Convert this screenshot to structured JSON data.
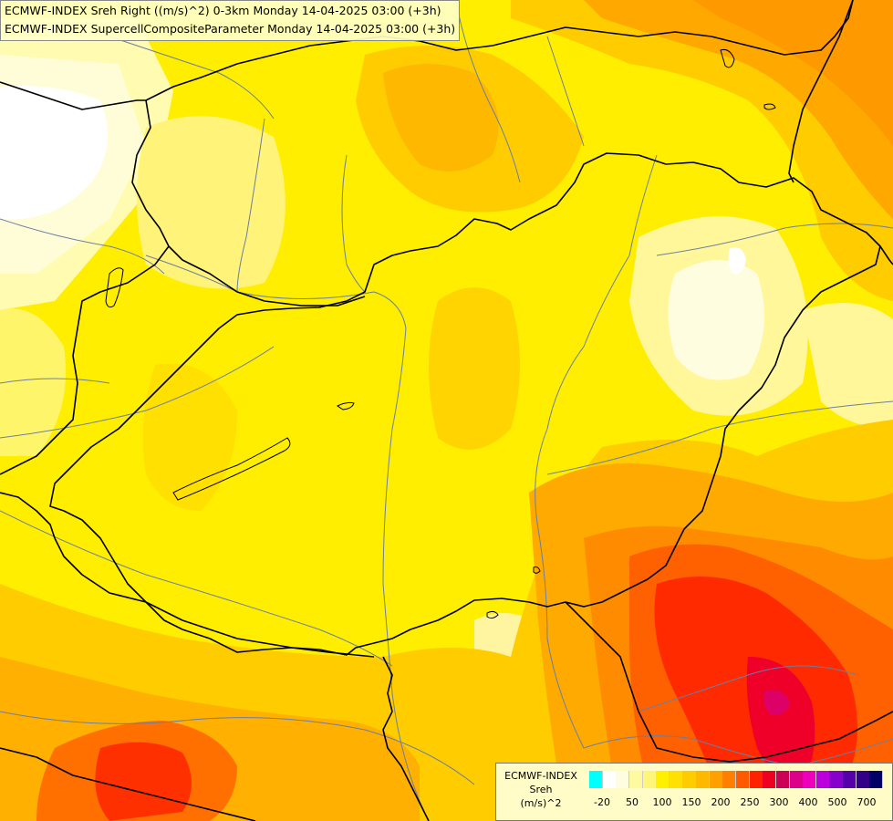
{
  "header": {
    "line1": "ECMWF-INDEX Sreh Right ((m/s)^2) 0-3km Monday 14-04-2025 03:00 (+3h)",
    "line2": "ECMWF-INDEX SupercellCompositeParameter Monday 14-04-2025 03:00 (+3h)"
  },
  "legend": {
    "title": "ECMWF-INDEX",
    "variable": "Sreh",
    "unit": "(m/s)^2",
    "colors": [
      "#00ffff",
      "#ffffff",
      "#fffde0",
      "#fffaa0",
      "#fff57a",
      "#fff000",
      "#ffe000",
      "#ffcc00",
      "#ffb800",
      "#ff9f00",
      "#ff8000",
      "#ff5a00",
      "#ff2200",
      "#ee0022",
      "#cc0055",
      "#dd0088",
      "#ee00bb",
      "#bb00dd",
      "#8800cc",
      "#5500aa",
      "#330088",
      "#000066"
    ],
    "ticks": [
      "-20",
      "50",
      "100",
      "150",
      "200",
      "250",
      "300",
      "400",
      "500",
      "700"
    ]
  },
  "map": {
    "background_color": "#ffee00"
  }
}
